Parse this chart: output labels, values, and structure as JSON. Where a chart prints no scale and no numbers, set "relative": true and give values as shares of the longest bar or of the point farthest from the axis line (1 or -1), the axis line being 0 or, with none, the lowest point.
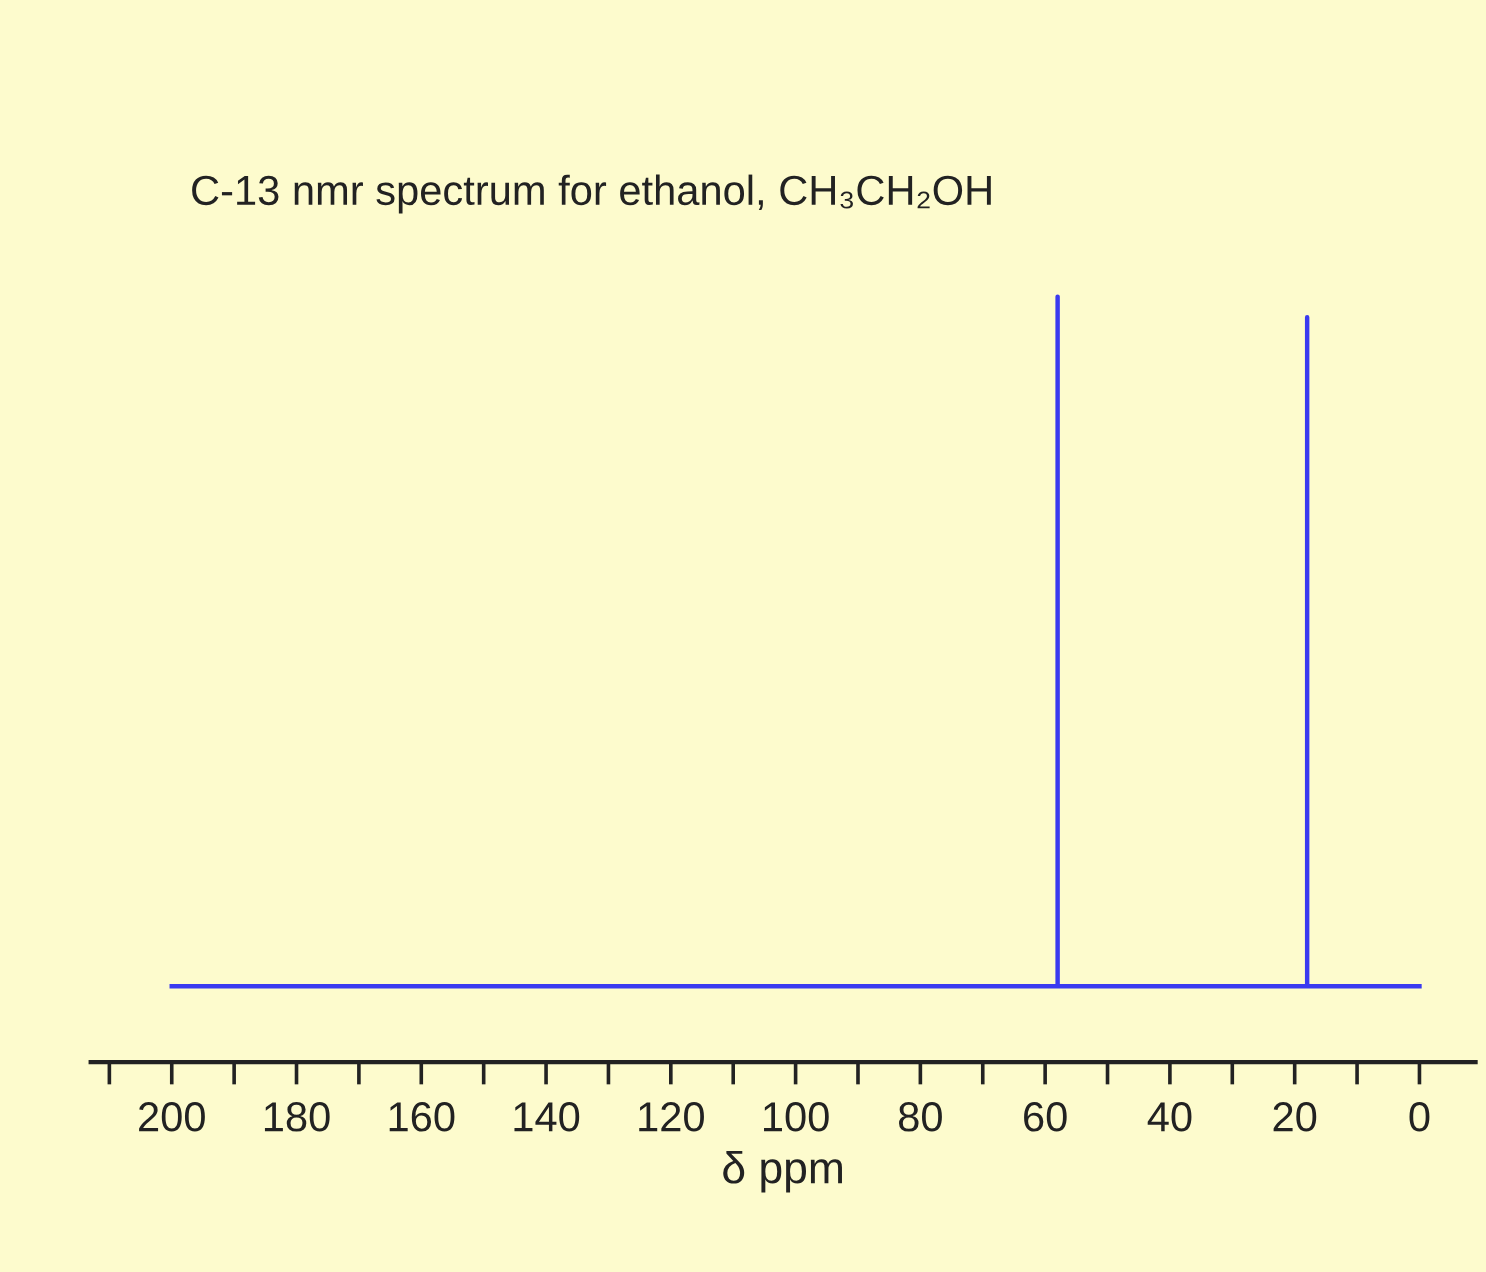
{
  "chart_data": {
    "type": "line",
    "title": "C-13 nmr spectrum for ethanol, CH₃CH₂OH",
    "xlabel": "δ ppm",
    "relative": true,
    "series": [
      {
        "color": "#3a3af0",
        "x": [
          200,
          58,
          58,
          58,
          18,
          18,
          18,
          0
        ],
        "values": [
          0,
          0,
          1,
          0,
          0,
          0.97,
          0,
          0
        ]
      }
    ],
    "xlim": [
      213,
      -9
    ],
    "xticks": [
      200,
      180,
      160,
      140,
      120,
      100,
      80,
      60,
      40,
      20,
      0
    ],
    "tick_labels": "x",
    "grid": false,
    "legend": false,
    "marker": "none",
    "line_style": "solid"
  }
}
